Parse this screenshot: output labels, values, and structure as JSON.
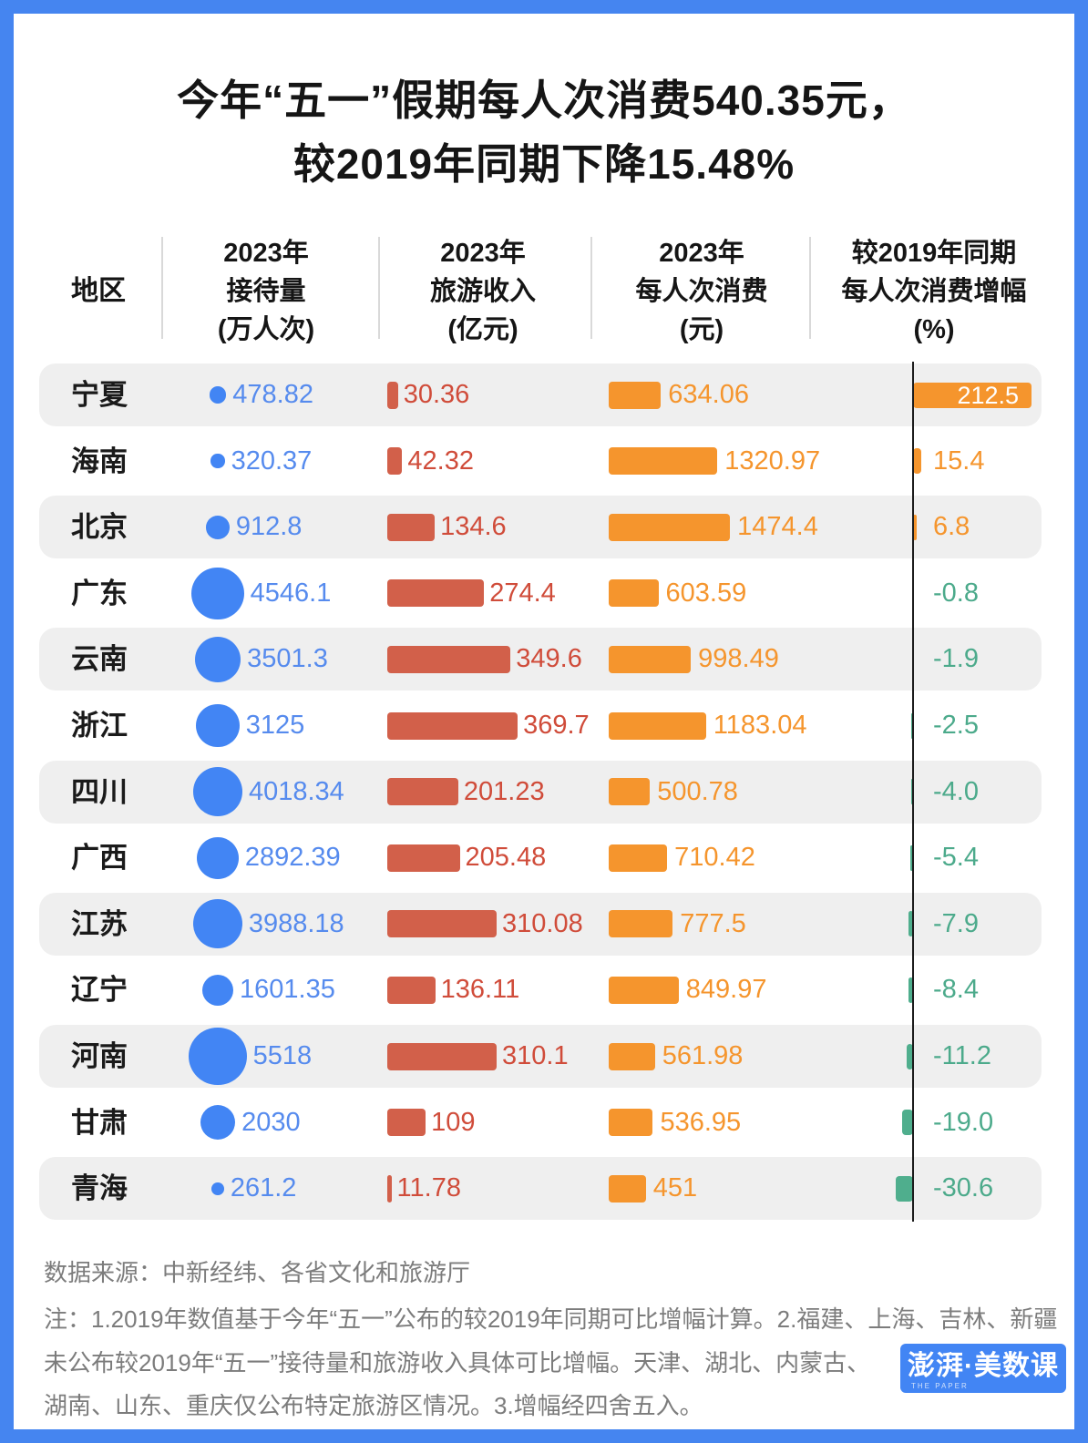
{
  "title": {
    "line1": "今年“五一”假期每人次消费540.35元，",
    "line2": "较2019年同期下降15.48%"
  },
  "table": {
    "region_header": "地区",
    "columns": [
      {
        "lines": [
          "2023年",
          "接待量",
          "(万人次)"
        ]
      },
      {
        "lines": [
          "2023年",
          "旅游收入",
          "(亿元)"
        ]
      },
      {
        "lines": [
          "2023年",
          "每人次消费",
          "(元)"
        ]
      },
      {
        "lines": [
          "较2019年同期",
          "每人次消费增幅",
          "(%)"
        ]
      }
    ],
    "rows": [
      {
        "region": "宁夏",
        "reception": 478.82,
        "reception_label": "478.82",
        "income": 30.36,
        "income_label": "30.36",
        "per_capita": 634.06,
        "per_capita_label": "634.06",
        "growth": 212.5,
        "growth_label": "212.5"
      },
      {
        "region": "海南",
        "reception": 320.37,
        "reception_label": "320.37",
        "income": 42.32,
        "income_label": "42.32",
        "per_capita": 1320.97,
        "per_capita_label": "1320.97",
        "growth": 15.4,
        "growth_label": "15.4"
      },
      {
        "region": "北京",
        "reception": 912.8,
        "reception_label": "912.8",
        "income": 134.6,
        "income_label": "134.6",
        "per_capita": 1474.4,
        "per_capita_label": "1474.4",
        "growth": 6.8,
        "growth_label": "6.8"
      },
      {
        "region": "广东",
        "reception": 4546.1,
        "reception_label": "4546.1",
        "income": 274.4,
        "income_label": "274.4",
        "per_capita": 603.59,
        "per_capita_label": "603.59",
        "growth": -0.8,
        "growth_label": "-0.8"
      },
      {
        "region": "云南",
        "reception": 3501.3,
        "reception_label": "3501.3",
        "income": 349.6,
        "income_label": "349.6",
        "per_capita": 998.49,
        "per_capita_label": "998.49",
        "growth": -1.9,
        "growth_label": "-1.9"
      },
      {
        "region": "浙江",
        "reception": 3125,
        "reception_label": "3125",
        "income": 369.7,
        "income_label": "369.7",
        "per_capita": 1183.04,
        "per_capita_label": "1183.04",
        "growth": -2.5,
        "growth_label": "-2.5"
      },
      {
        "region": "四川",
        "reception": 4018.34,
        "reception_label": "4018.34",
        "income": 201.23,
        "income_label": "201.23",
        "per_capita": 500.78,
        "per_capita_label": "500.78",
        "growth": -4.0,
        "growth_label": "-4.0"
      },
      {
        "region": "广西",
        "reception": 2892.39,
        "reception_label": "2892.39",
        "income": 205.48,
        "income_label": "205.48",
        "per_capita": 710.42,
        "per_capita_label": "710.42",
        "growth": -5.4,
        "growth_label": "-5.4"
      },
      {
        "region": "江苏",
        "reception": 3988.18,
        "reception_label": "3988.18",
        "income": 310.08,
        "income_label": "310.08",
        "per_capita": 777.5,
        "per_capita_label": "777.5",
        "growth": -7.9,
        "growth_label": "-7.9"
      },
      {
        "region": "辽宁",
        "reception": 1601.35,
        "reception_label": "1601.35",
        "income": 136.11,
        "income_label": "136.11",
        "per_capita": 849.97,
        "per_capita_label": "849.97",
        "growth": -8.4,
        "growth_label": "-8.4"
      },
      {
        "region": "河南",
        "reception": 5518,
        "reception_label": "5518",
        "income": 310.1,
        "income_label": "310.1",
        "per_capita": 561.98,
        "per_capita_label": "561.98",
        "growth": -11.2,
        "growth_label": "-11.2"
      },
      {
        "region": "甘肃",
        "reception": 2030,
        "reception_label": "2030",
        "income": 109,
        "income_label": "109",
        "per_capita": 536.95,
        "per_capita_label": "536.95",
        "growth": -19.0,
        "growth_label": "-19.0"
      },
      {
        "region": "青海",
        "reception": 261.2,
        "reception_label": "261.2",
        "income": 11.78,
        "income_label": "11.78",
        "per_capita": 451,
        "per_capita_label": "451",
        "growth": -30.6,
        "growth_label": "-30.6"
      }
    ]
  },
  "footer": {
    "source": "数据来源：中新经纬、各省文化和旅游厅",
    "notes": [
      "注：1.2019年数值基于今年“五一”公布的较2019年同期可比增幅计算。2.福建、上海、吉林、新疆",
      "未公布较2019年“五一”接待量和旅游收入具体可比增幅。天津、湖北、内蒙古、",
      "湖南、山东、重庆仅公布特定旅游区情况。3.增幅经四舍五入。"
    ]
  },
  "logo": {
    "main": "澎湃·美数课",
    "sub": "THE PAPER"
  },
  "colors": {
    "border_blue": "#4585f0",
    "circle_blue": "#4285f4",
    "value_blue": "#568bee",
    "bar_red": "#d2604a",
    "text_red": "#d04c3a",
    "bar_orange": "#f5952d",
    "bar_green": "#4fae8d",
    "text_green": "#4caa8b",
    "row_stripe": "#efefef"
  },
  "chart_data": {
    "type": "table",
    "title": "今年“五一”假期每人次消费540.35元，较2019年同期下降15.48%",
    "categories": [
      "宁夏",
      "海南",
      "北京",
      "广东",
      "云南",
      "浙江",
      "四川",
      "广西",
      "江苏",
      "辽宁",
      "河南",
      "甘肃",
      "青海"
    ],
    "series": [
      {
        "name": "2023年接待量(万人次)",
        "mark": "bubble",
        "values": [
          478.82,
          320.37,
          912.8,
          4546.1,
          3501.3,
          3125,
          4018.34,
          2892.39,
          3988.18,
          1601.35,
          5518,
          2030,
          261.2
        ]
      },
      {
        "name": "2023年旅游收入(亿元)",
        "mark": "bar",
        "values": [
          30.36,
          42.32,
          134.6,
          274.4,
          349.6,
          369.7,
          201.23,
          205.48,
          310.08,
          136.11,
          310.1,
          109,
          11.78
        ]
      },
      {
        "name": "2023年每人次消费(元)",
        "mark": "bar",
        "values": [
          634.06,
          1320.97,
          1474.4,
          603.59,
          998.49,
          1183.04,
          500.78,
          710.42,
          777.5,
          849.97,
          561.98,
          536.95,
          451
        ]
      },
      {
        "name": "较2019年同期每人次消费增幅(%)",
        "mark": "diverging-bar",
        "values": [
          212.5,
          15.4,
          6.8,
          -0.8,
          -1.9,
          -2.5,
          -4.0,
          -5.4,
          -7.9,
          -8.4,
          -11.2,
          -19.0,
          -30.6
        ]
      }
    ],
    "legend_position": "none",
    "grid": false
  }
}
